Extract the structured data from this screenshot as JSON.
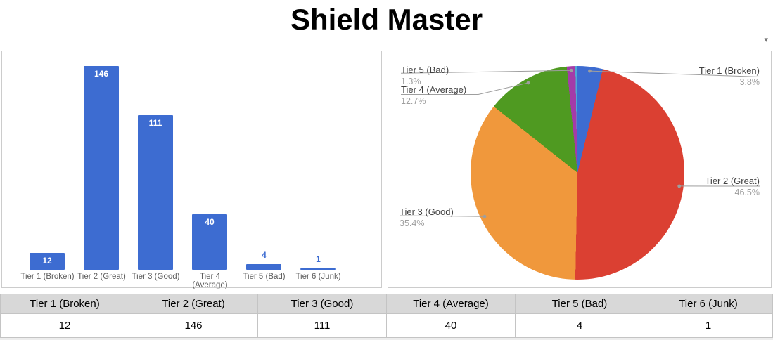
{
  "title": "Shield Master",
  "icons": {
    "chart_menu_arrow": "▾"
  },
  "chart_data": [
    {
      "type": "bar",
      "title": "",
      "categories": [
        "Tier 1 (Broken)",
        "Tier 2 (Great)",
        "Tier 3 (Good)",
        "Tier 4 (Average)",
        "Tier 5 (Bad)",
        "Tier 6 (Junk)"
      ],
      "values": [
        12,
        146,
        111,
        40,
        4,
        1
      ],
      "value_labels": [
        "12",
        "146",
        "111",
        "40",
        "4",
        "1"
      ],
      "bar_color": "#3d6cd1",
      "xlabel": "",
      "ylabel": "",
      "ylim": [
        0,
        150
      ],
      "grid": false,
      "legend": "none"
    },
    {
      "type": "pie",
      "title": "",
      "labels": [
        "Tier 1 (Broken)",
        "Tier 2 (Great)",
        "Tier 3 (Good)",
        "Tier 4 (Average)",
        "Tier 5 (Bad)",
        "Tier 6 (Junk)"
      ],
      "values": [
        12,
        146,
        111,
        40,
        4,
        1
      ],
      "percentages": [
        3.8,
        46.5,
        35.4,
        12.7,
        1.3,
        0.3
      ],
      "slice_colors": [
        "#3d6cd1",
        "#db4032",
        "#f0983c",
        "#4f9a21",
        "#a43ba8",
        "#4fa9d4"
      ],
      "start_angle": 0,
      "direction": "clockwise",
      "legend": "labeled-callouts",
      "callouts": [
        {
          "label": "Tier 1 (Broken)",
          "pct": "3.8%"
        },
        {
          "label": "Tier 2 (Great)",
          "pct": "46.5%"
        },
        {
          "label": "Tier 3 (Good)",
          "pct": "35.4%"
        },
        {
          "label": "Tier 4 (Average)",
          "pct": "12.7%"
        },
        {
          "label": "Tier 5 (Bad)",
          "pct": "1.3%"
        }
      ]
    }
  ],
  "table": {
    "headers": [
      "Tier 1 (Broken)",
      "Tier 2 (Great)",
      "Tier 3 (Good)",
      "Tier 4 (Average)",
      "Tier 5 (Bad)",
      "Tier 6 (Junk)"
    ],
    "values": [
      "12",
      "146",
      "111",
      "40",
      "4",
      "1"
    ]
  },
  "colors": {
    "bar_blue": "#3d6cd1",
    "callout_line": "#9e9e9e",
    "callout_label_text": "#424242",
    "callout_pct_text": "#9e9e9e",
    "axis_label_text": "#5f5f5f",
    "table_header_bg": "#d8d8d8",
    "panel_border": "#cccccc"
  }
}
